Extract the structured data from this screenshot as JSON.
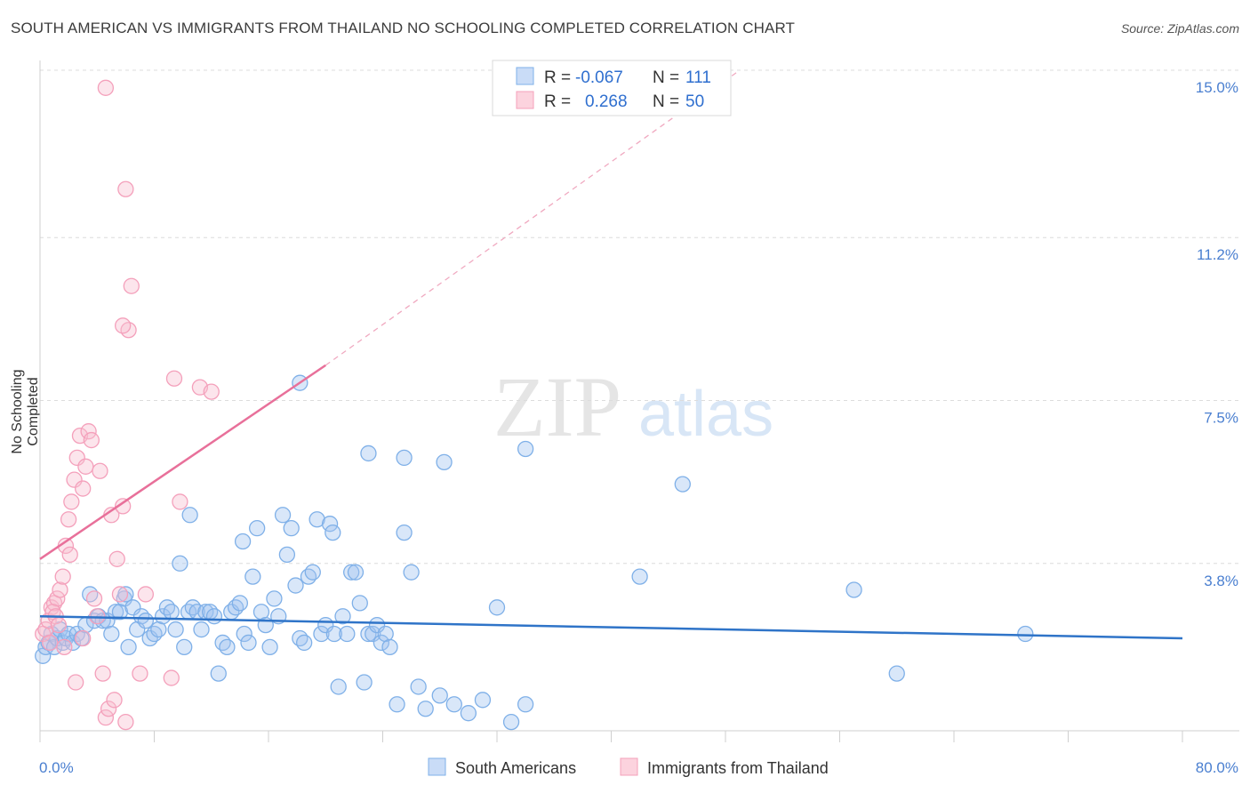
{
  "title": "SOUTH AMERICAN VS IMMIGRANTS FROM THAILAND NO SCHOOLING COMPLETED CORRELATION CHART",
  "source": "Source: ZipAtlas.com",
  "watermark": {
    "zip": "ZIP",
    "atlas": "atlas"
  },
  "legend_top": [
    {
      "r_label": "R =",
      "r_value": "-0.067",
      "n_label": "N =",
      "n_value": "111",
      "color": "#7fb0e8"
    },
    {
      "r_label": "R =",
      "r_value": "0.268",
      "n_label": "N =",
      "n_value": "50",
      "color": "#f4a0bb"
    }
  ],
  "legend_bottom": [
    {
      "label": "South Americans",
      "color": "#7fb0e8"
    },
    {
      "label": "Immigrants from Thailand",
      "color": "#f4a0bb"
    }
  ],
  "chart_data": {
    "type": "scatter",
    "xlabel": "",
    "ylabel": "No Schooling Completed",
    "xlim": [
      0,
      80
    ],
    "ylim": [
      0,
      15
    ],
    "x_tick_labels": [
      "0.0%",
      "80.0%"
    ],
    "y_ticks": [
      3.8,
      7.5,
      11.2,
      15.0
    ],
    "y_tick_labels": [
      "3.8%",
      "7.5%",
      "11.2%",
      "15.0%"
    ],
    "grid": "horizontal dashed",
    "colors": {
      "south_americans": "#7fb0e8",
      "thailand": "#f4a0bb",
      "blue_line": "#2f74c8",
      "pink_line": "#e8709a",
      "axis_text": "#4a7fd0"
    },
    "series": [
      {
        "name": "South Americans",
        "trend": {
          "x": [
            0,
            80
          ],
          "y": [
            2.6,
            2.1
          ]
        },
        "points": [
          [
            0.2,
            1.7
          ],
          [
            0.4,
            1.9
          ],
          [
            0.6,
            2.0
          ],
          [
            0.8,
            2.2
          ],
          [
            1.0,
            1.9
          ],
          [
            1.2,
            2.1
          ],
          [
            1.4,
            2.3
          ],
          [
            1.6,
            2.0
          ],
          [
            1.8,
            2.1
          ],
          [
            2.0,
            2.2
          ],
          [
            2.3,
            2.0
          ],
          [
            2.6,
            2.2
          ],
          [
            2.9,
            2.1
          ],
          [
            3.2,
            2.4
          ],
          [
            3.5,
            3.1
          ],
          [
            3.8,
            2.5
          ],
          [
            4.1,
            2.6
          ],
          [
            4.4,
            2.5
          ],
          [
            4.7,
            2.5
          ],
          [
            5.0,
            2.2
          ],
          [
            5.3,
            2.7
          ],
          [
            5.6,
            2.7
          ],
          [
            5.9,
            3.0
          ],
          [
            6.2,
            1.9
          ],
          [
            6.5,
            2.8
          ],
          [
            6.8,
            2.3
          ],
          [
            7.1,
            2.6
          ],
          [
            7.4,
            2.5
          ],
          [
            7.7,
            2.1
          ],
          [
            8.0,
            2.2
          ],
          [
            8.3,
            2.3
          ],
          [
            8.6,
            2.6
          ],
          [
            8.9,
            2.8
          ],
          [
            9.2,
            2.7
          ],
          [
            9.5,
            2.3
          ],
          [
            9.8,
            3.8
          ],
          [
            10.1,
            1.9
          ],
          [
            10.4,
            2.7
          ],
          [
            10.7,
            2.8
          ],
          [
            11.0,
            2.7
          ],
          [
            11.3,
            2.3
          ],
          [
            11.6,
            2.7
          ],
          [
            11.9,
            2.7
          ],
          [
            12.2,
            2.6
          ],
          [
            12.5,
            1.3
          ],
          [
            12.8,
            2.0
          ],
          [
            13.1,
            1.9
          ],
          [
            13.4,
            2.7
          ],
          [
            13.7,
            2.8
          ],
          [
            14.0,
            2.9
          ],
          [
            14.3,
            2.2
          ],
          [
            14.6,
            2.0
          ],
          [
            14.9,
            3.5
          ],
          [
            15.2,
            4.6
          ],
          [
            15.5,
            2.7
          ],
          [
            15.8,
            2.4
          ],
          [
            16.1,
            1.9
          ],
          [
            16.4,
            3.0
          ],
          [
            16.7,
            2.6
          ],
          [
            17.0,
            4.9
          ],
          [
            17.3,
            4.0
          ],
          [
            17.6,
            4.6
          ],
          [
            17.9,
            3.3
          ],
          [
            18.2,
            2.1
          ],
          [
            18.5,
            2.0
          ],
          [
            18.8,
            3.5
          ],
          [
            19.1,
            3.6
          ],
          [
            19.4,
            4.8
          ],
          [
            19.7,
            2.2
          ],
          [
            20.0,
            2.4
          ],
          [
            20.3,
            4.7
          ],
          [
            20.6,
            2.2
          ],
          [
            20.9,
            1.0
          ],
          [
            21.2,
            2.6
          ],
          [
            21.5,
            2.2
          ],
          [
            21.8,
            3.6
          ],
          [
            22.1,
            3.6
          ],
          [
            22.4,
            2.9
          ],
          [
            22.7,
            1.1
          ],
          [
            23.0,
            2.2
          ],
          [
            23.3,
            2.2
          ],
          [
            23.6,
            2.4
          ],
          [
            23.9,
            2.0
          ],
          [
            24.2,
            2.2
          ],
          [
            24.5,
            1.9
          ],
          [
            25.0,
            0.6
          ],
          [
            25.5,
            6.2
          ],
          [
            26.0,
            3.6
          ],
          [
            26.5,
            1.0
          ],
          [
            27.0,
            0.5
          ],
          [
            28.0,
            0.8
          ],
          [
            29.0,
            0.6
          ],
          [
            30.0,
            0.4
          ],
          [
            31.0,
            0.7
          ],
          [
            32.0,
            2.8
          ],
          [
            33.0,
            0.2
          ],
          [
            34.0,
            0.6
          ],
          [
            6.0,
            3.1
          ],
          [
            18.2,
            7.9
          ],
          [
            23.0,
            6.3
          ],
          [
            10.5,
            4.9
          ],
          [
            14.2,
            4.3
          ],
          [
            20.5,
            4.5
          ],
          [
            25.5,
            4.5
          ],
          [
            28.3,
            6.1
          ],
          [
            34.0,
            6.4
          ],
          [
            42.0,
            3.5
          ],
          [
            45.0,
            5.6
          ],
          [
            57.0,
            3.2
          ],
          [
            60.0,
            1.3
          ],
          [
            69.0,
            2.2
          ]
        ]
      },
      {
        "name": "Immigrants from Thailand",
        "trend": {
          "x": [
            0,
            20
          ],
          "y": [
            3.9,
            8.3
          ]
        },
        "trend_extension": {
          "x": [
            20,
            49
          ],
          "y": [
            8.3,
            15.0
          ]
        },
        "points": [
          [
            0.2,
            2.2
          ],
          [
            0.4,
            2.3
          ],
          [
            0.6,
            2.5
          ],
          [
            0.8,
            2.8
          ],
          [
            1.0,
            2.9
          ],
          [
            1.2,
            3.0
          ],
          [
            1.4,
            3.2
          ],
          [
            1.6,
            3.5
          ],
          [
            1.8,
            4.2
          ],
          [
            2.0,
            4.8
          ],
          [
            2.2,
            5.2
          ],
          [
            2.4,
            5.7
          ],
          [
            2.6,
            6.2
          ],
          [
            2.8,
            6.7
          ],
          [
            3.0,
            5.5
          ],
          [
            3.2,
            6.0
          ],
          [
            3.4,
            6.8
          ],
          [
            3.6,
            6.6
          ],
          [
            3.8,
            3.0
          ],
          [
            4.0,
            2.6
          ],
          [
            4.2,
            5.9
          ],
          [
            4.4,
            1.3
          ],
          [
            4.6,
            0.3
          ],
          [
            4.8,
            0.5
          ],
          [
            5.0,
            4.9
          ],
          [
            5.2,
            0.7
          ],
          [
            5.4,
            3.9
          ],
          [
            5.6,
            3.1
          ],
          [
            5.8,
            5.1
          ],
          [
            6.0,
            0.2
          ],
          [
            4.6,
            14.6
          ],
          [
            6.0,
            12.3
          ],
          [
            6.4,
            10.1
          ],
          [
            6.2,
            9.1
          ],
          [
            5.8,
            9.2
          ],
          [
            9.4,
            8.0
          ],
          [
            11.2,
            7.8
          ],
          [
            12.0,
            7.7
          ],
          [
            9.8,
            5.2
          ],
          [
            7.4,
            3.1
          ],
          [
            7.0,
            1.3
          ],
          [
            9.2,
            1.2
          ],
          [
            0.9,
            2.7
          ],
          [
            0.7,
            2.0
          ],
          [
            1.1,
            2.6
          ],
          [
            1.3,
            2.4
          ],
          [
            1.7,
            1.9
          ],
          [
            2.1,
            4.0
          ],
          [
            2.5,
            1.1
          ],
          [
            3.0,
            2.1
          ]
        ]
      }
    ]
  }
}
